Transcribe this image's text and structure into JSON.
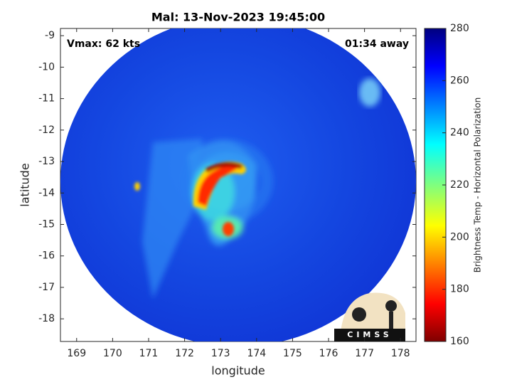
{
  "map": {
    "title": "Mal: 13-Nov-2023 19:45:00",
    "annotations": [
      "Vmax: 62 kts",
      "01:34 away"
    ],
    "xlabel": "longitude",
    "ylabel": "latitude",
    "xlim": [
      168.55,
      178.43
    ],
    "ylim": [
      -18.72,
      -8.77
    ],
    "xticks": [
      169,
      170,
      171,
      172,
      173,
      174,
      175,
      176,
      177,
      178
    ],
    "yticks": [
      -18,
      -17,
      -16,
      -15,
      -14,
      -13,
      -12,
      -11,
      -10,
      -9
    ],
    "colorbar": {
      "label": "Brightness Temp - Horizontal Polarization",
      "lim": [
        160,
        280
      ],
      "ticks": [
        160,
        180,
        200,
        220,
        240,
        260,
        280
      ]
    },
    "logo": "CIMSS"
  }
}
